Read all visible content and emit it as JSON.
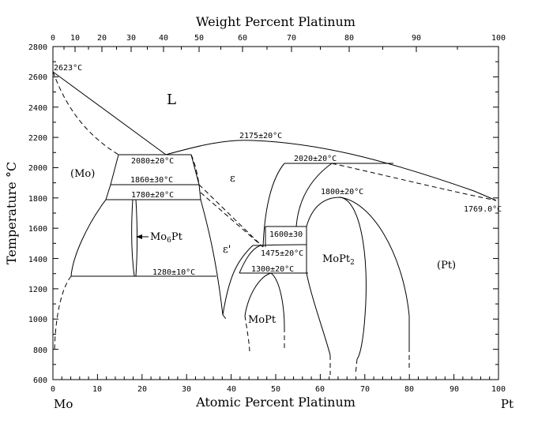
{
  "diagram": {
    "top_axis_title": "Weight Percent Platinum",
    "bottom_axis_title": "Atomic Percent Platinum",
    "y_axis_title": "Temperature °C",
    "left_element": "Mo",
    "right_element": "Pt",
    "x_ticks": [
      "0",
      "10",
      "20",
      "30",
      "40",
      "50",
      "60",
      "70",
      "80",
      "90",
      "100"
    ],
    "top_ticks": [
      "0",
      "10",
      "20",
      "30",
      "40",
      "50",
      "60",
      "70",
      "80",
      "90",
      "100"
    ],
    "y_ticks": [
      "600",
      "800",
      "1000",
      "1200",
      "1400",
      "1600",
      "1800",
      "2000",
      "2200",
      "2400",
      "2600",
      "2800"
    ],
    "phases": {
      "liquid": "L",
      "mo": "(Mo)",
      "epsilon": "ε",
      "epsilon_prime": "ε'",
      "mo6pt_main": "Mo",
      "mo6pt_sub": "6",
      "mo6pt_tail": "Pt",
      "mopt": "MoPt",
      "mopt2_main": "MoPt",
      "mopt2_sub": "2",
      "pt": "(Pt)"
    },
    "temperatures": {
      "t2623": "2623°C",
      "t2175": "2175±20°C",
      "t2080": "2080±20°C",
      "t2020": "2020±20°C",
      "t1860": "1860±30°C",
      "t1780": "1780±20°C",
      "t1800": "1800±20°C",
      "t1769": "1769.0°C",
      "t1600": "1600±30",
      "t1475": "1475±20°C",
      "t1300": "1300±20°C",
      "t1280": "1280±10°C"
    }
  }
}
